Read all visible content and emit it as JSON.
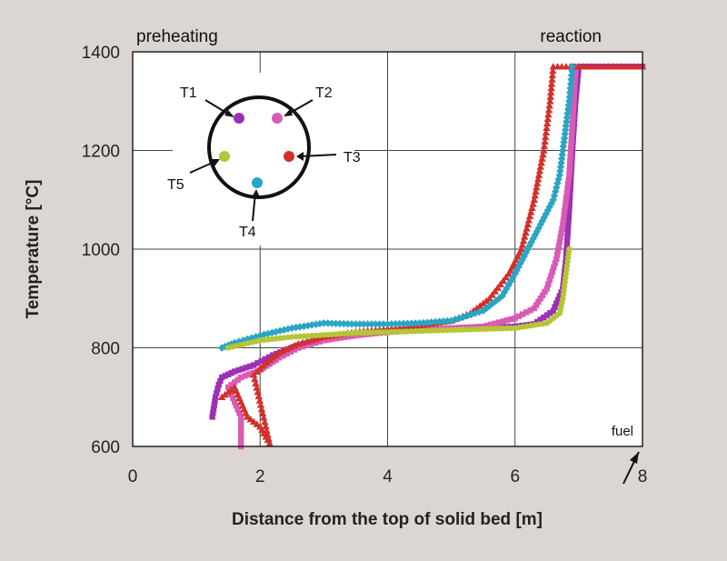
{
  "chart_data": {
    "type": "scatter",
    "title": "",
    "xlabel": "Distance from the top of solid bed [m]",
    "ylabel": "Temperature [°C]",
    "xlim": [
      0,
      8
    ],
    "ylim": [
      600,
      1400
    ],
    "xticks": [
      0,
      2,
      4,
      6,
      8
    ],
    "yticks": [
      600,
      800,
      1000,
      1200,
      1400
    ],
    "grid": true,
    "annotations": {
      "preheating": "preheating",
      "reaction": "reaction",
      "fuel": "fuel"
    },
    "inset": {
      "description": "thermocouple positions in cross-section",
      "labels": [
        "T1",
        "T2",
        "T3",
        "T4",
        "T5"
      ]
    },
    "series": [
      {
        "name": "T1",
        "color": "#9b30b5",
        "marker": "square",
        "points": [
          [
            1.25,
            660
          ],
          [
            1.3,
            700
          ],
          [
            1.35,
            725
          ],
          [
            1.4,
            740
          ],
          [
            1.6,
            752
          ],
          [
            1.9,
            765
          ],
          [
            2.2,
            785
          ],
          [
            2.6,
            805
          ],
          [
            3.0,
            818
          ],
          [
            3.5,
            826
          ],
          [
            4.0,
            832
          ],
          [
            4.5,
            836
          ],
          [
            5.0,
            838
          ],
          [
            5.5,
            840
          ],
          [
            6.0,
            843
          ],
          [
            6.3,
            848
          ],
          [
            6.6,
            875
          ],
          [
            6.75,
            920
          ],
          [
            6.8,
            980
          ],
          [
            6.85,
            1080
          ],
          [
            6.9,
            1200
          ],
          [
            6.95,
            1300
          ],
          [
            7.0,
            1370
          ],
          [
            7.5,
            1370
          ],
          [
            8.0,
            1370
          ]
        ]
      },
      {
        "name": "T2",
        "color": "#d85cb4",
        "marker": "square",
        "points": [
          [
            1.7,
            600
          ],
          [
            1.7,
            660
          ],
          [
            1.5,
            720
          ],
          [
            1.7,
            740
          ],
          [
            2.0,
            755
          ],
          [
            2.3,
            780
          ],
          [
            2.6,
            800
          ],
          [
            3.0,
            815
          ],
          [
            3.5,
            825
          ],
          [
            4.0,
            832
          ],
          [
            4.5,
            836
          ],
          [
            5.0,
            840
          ],
          [
            5.5,
            843
          ],
          [
            6.0,
            860
          ],
          [
            6.3,
            880
          ],
          [
            6.5,
            920
          ],
          [
            6.65,
            980
          ],
          [
            6.75,
            1050
          ],
          [
            6.85,
            1150
          ],
          [
            6.9,
            1250
          ],
          [
            6.95,
            1370
          ]
        ]
      },
      {
        "name": "T3",
        "color": "#d1302b",
        "marker": "triangle",
        "points": [
          [
            1.4,
            700
          ],
          [
            1.6,
            720
          ],
          [
            1.8,
            660
          ],
          [
            2.0,
            640
          ],
          [
            2.15,
            606
          ],
          [
            1.9,
            745
          ],
          [
            2.1,
            770
          ],
          [
            2.3,
            790
          ],
          [
            2.6,
            808
          ],
          [
            3.0,
            822
          ],
          [
            3.5,
            832
          ],
          [
            4.0,
            838
          ],
          [
            4.5,
            845
          ],
          [
            5.0,
            855
          ],
          [
            5.3,
            870
          ],
          [
            5.6,
            900
          ],
          [
            5.9,
            950
          ],
          [
            6.1,
            1000
          ],
          [
            6.3,
            1100
          ],
          [
            6.45,
            1200
          ],
          [
            6.55,
            1300
          ],
          [
            6.6,
            1370
          ],
          [
            7.0,
            1370
          ],
          [
            8.0,
            1370
          ]
        ]
      },
      {
        "name": "T4",
        "color": "#2aa5c4",
        "marker": "diamond",
        "points": [
          [
            1.4,
            800
          ],
          [
            1.6,
            810
          ],
          [
            2.0,
            825
          ],
          [
            2.5,
            840
          ],
          [
            3.0,
            850
          ],
          [
            3.5,
            848
          ],
          [
            4.0,
            848
          ],
          [
            4.5,
            850
          ],
          [
            5.0,
            855
          ],
          [
            5.5,
            875
          ],
          [
            5.8,
            905
          ],
          [
            6.0,
            950
          ],
          [
            6.2,
            1000
          ],
          [
            6.4,
            1050
          ],
          [
            6.6,
            1100
          ],
          [
            6.7,
            1150
          ],
          [
            6.75,
            1200
          ],
          [
            6.8,
            1250
          ],
          [
            6.85,
            1300
          ],
          [
            6.9,
            1370
          ]
        ]
      },
      {
        "name": "T5",
        "color": "#b5c535",
        "marker": "circle",
        "points": [
          [
            1.5,
            800
          ],
          [
            2.0,
            815
          ],
          [
            2.5,
            822
          ],
          [
            3.0,
            826
          ],
          [
            3.5,
            830
          ],
          [
            4.0,
            832
          ],
          [
            4.5,
            834
          ],
          [
            5.0,
            836
          ],
          [
            5.5,
            838
          ],
          [
            6.0,
            840
          ],
          [
            6.5,
            850
          ],
          [
            6.7,
            870
          ],
          [
            6.75,
            900
          ],
          [
            6.8,
            950
          ],
          [
            6.85,
            1000
          ]
        ]
      }
    ]
  }
}
